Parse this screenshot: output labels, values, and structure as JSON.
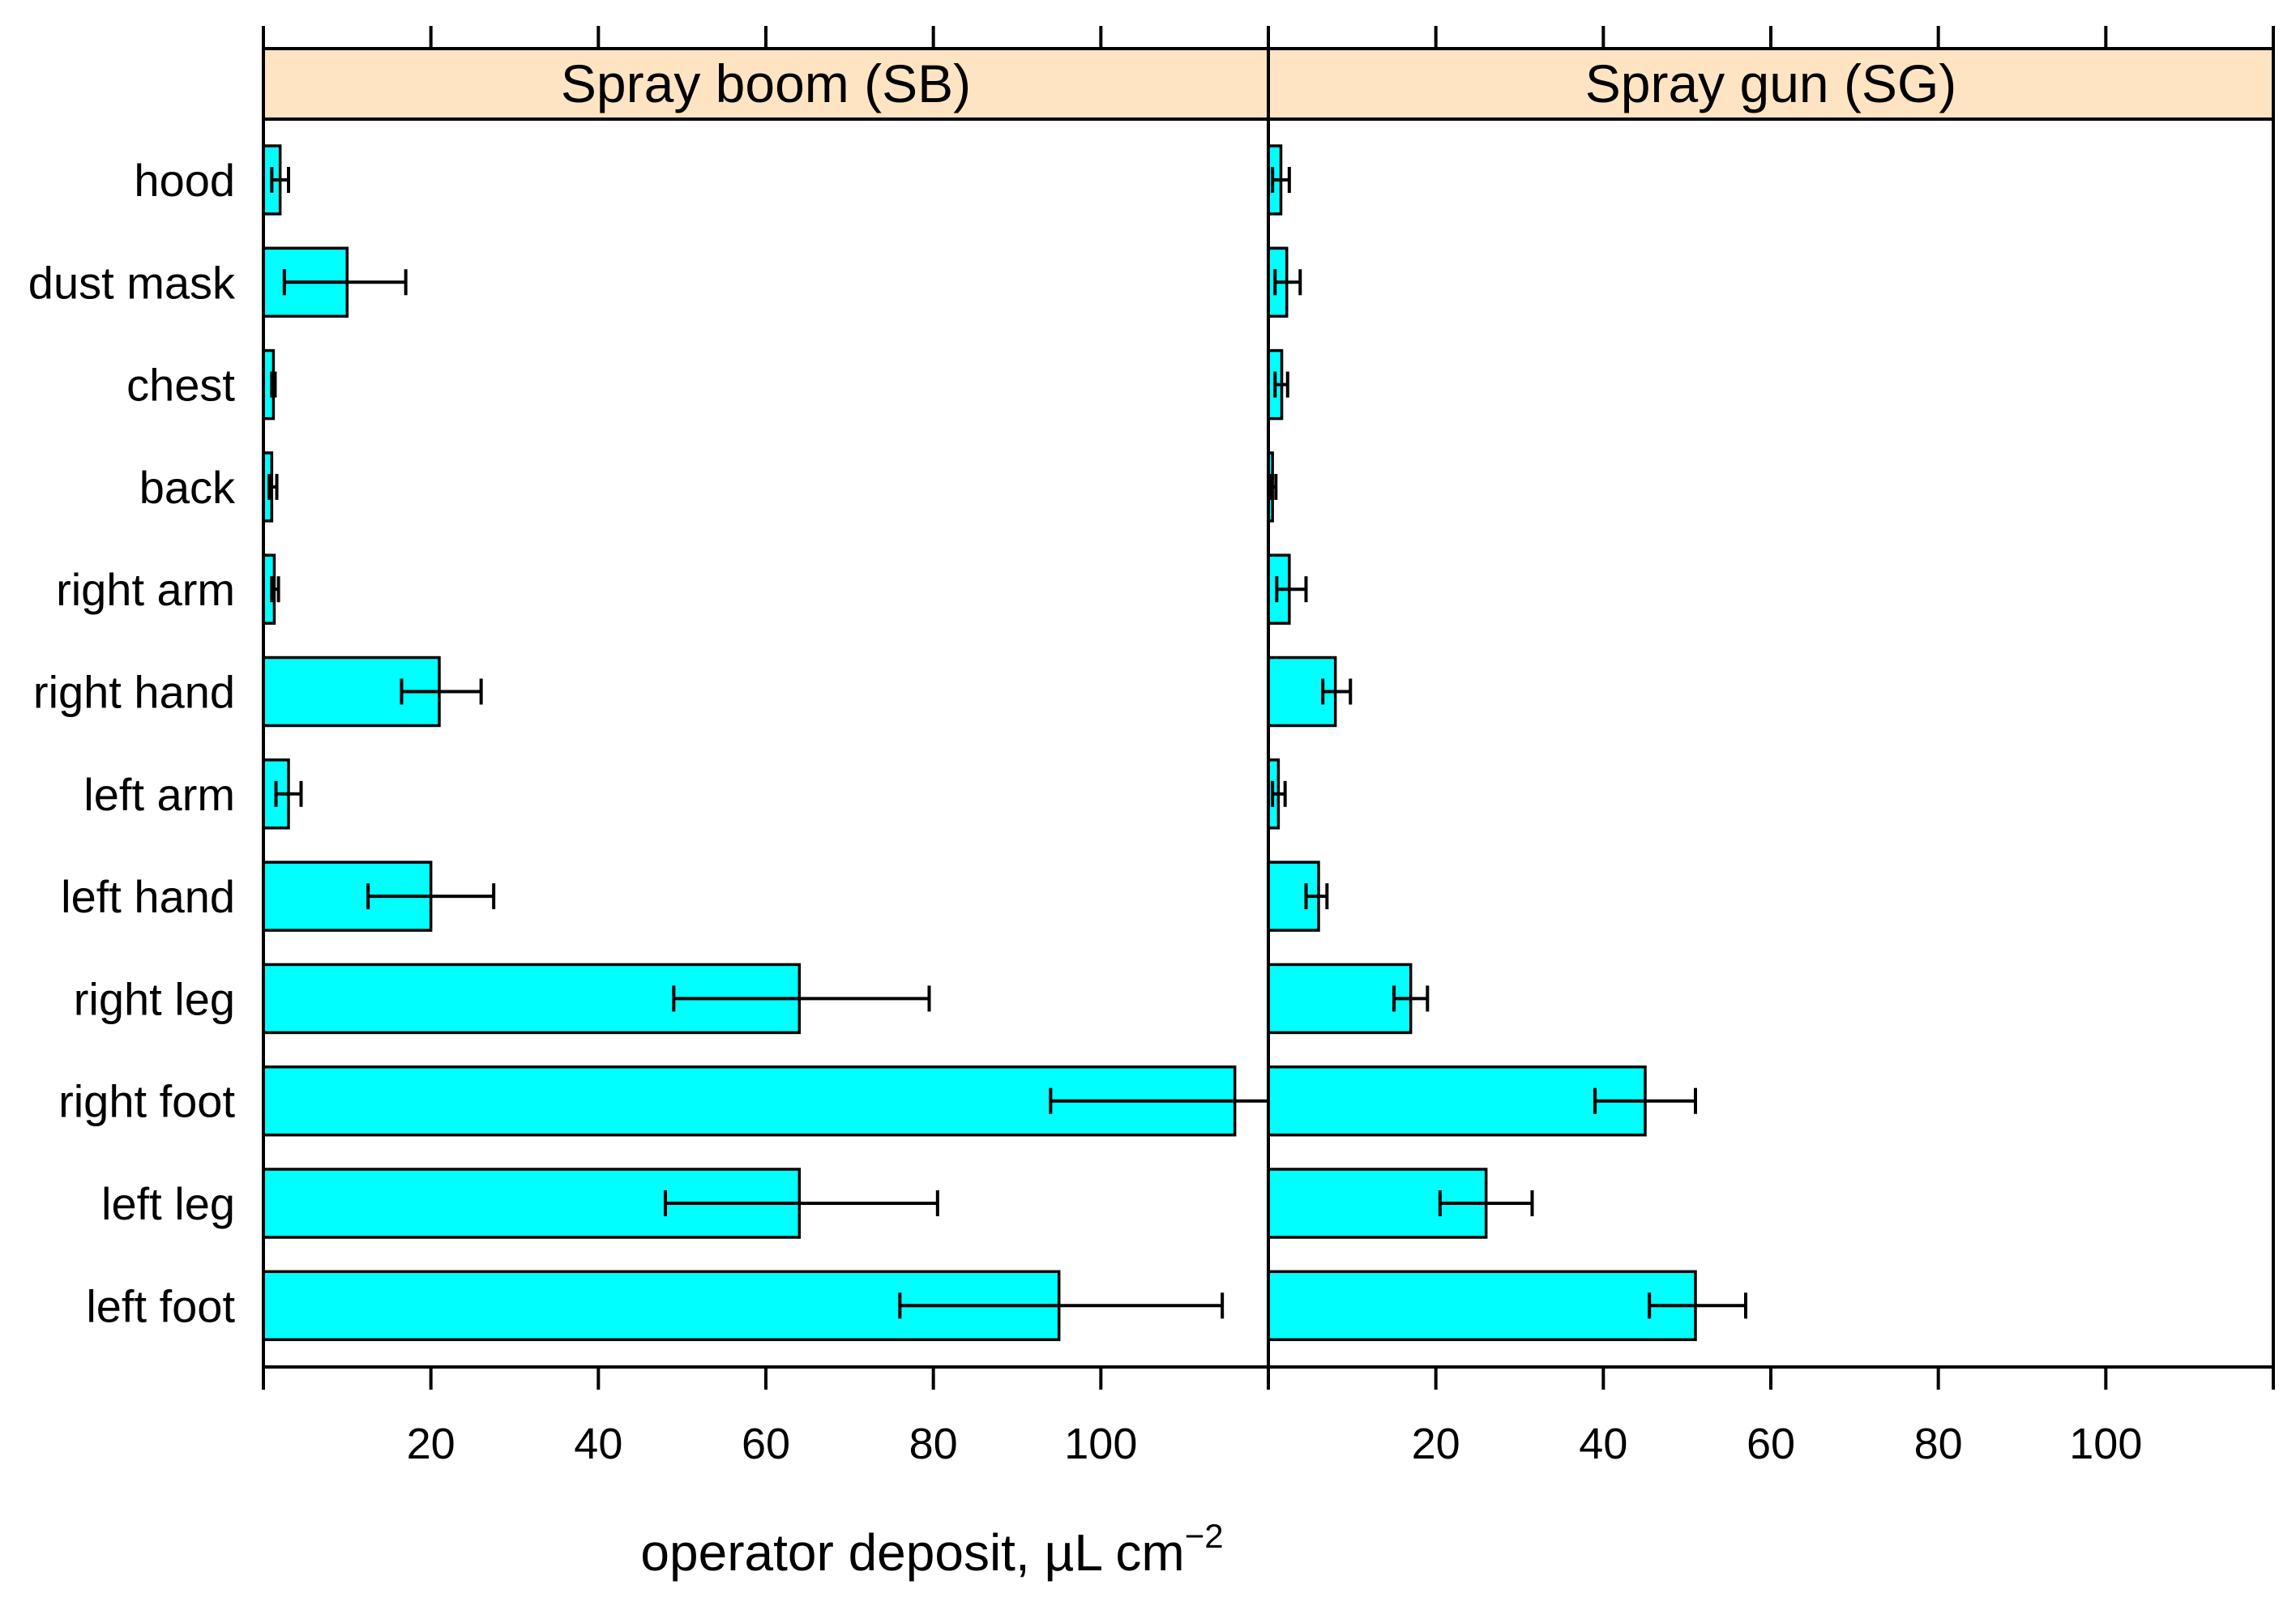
{
  "chart_data": {
    "type": "bar",
    "orientation": "horizontal",
    "bar_color": "#00FFFF",
    "strip_color": "#FFE4C4",
    "categories": [
      "hood",
      "dust mask",
      "chest",
      "back",
      "right arm",
      "right hand",
      "left arm",
      "left hand",
      "right leg",
      "right foot",
      "left leg",
      "left foot"
    ],
    "xlim": [
      0,
      120
    ],
    "xticks": [
      20,
      40,
      60,
      80,
      100
    ],
    "x_tick_labels": [
      "20",
      "40",
      "60",
      "80",
      "100"
    ],
    "xlabel": {
      "main": "operator deposit,  µL cm",
      "superscript": "−2"
    },
    "panels": [
      {
        "name": "Spray boom (SB)",
        "values": [
          2,
          10,
          1.2,
          1,
          1.3,
          21,
          3,
          20,
          64,
          116,
          64,
          95
        ],
        "err_low": [
          1,
          2.5,
          1,
          0.7,
          1,
          16.5,
          1.5,
          12.5,
          49,
          94,
          48,
          76
        ],
        "err_high": [
          3,
          17,
          1.4,
          1.6,
          1.8,
          26,
          4.5,
          27.5,
          79.5,
          120,
          80.5,
          114.5
        ]
      },
      {
        "name": "Spray gun (SG)",
        "values": [
          1.5,
          2.2,
          1.6,
          0.5,
          2.5,
          8,
          1.2,
          6,
          17,
          45,
          26,
          51
        ],
        "err_low": [
          0.5,
          0.8,
          0.8,
          0.2,
          1,
          6.5,
          0.5,
          4.5,
          15,
          39,
          20.5,
          45.5
        ],
        "err_high": [
          2.5,
          3.8,
          2.3,
          0.9,
          4.5,
          9.8,
          2,
          7,
          19,
          51,
          31.5,
          57
        ]
      }
    ]
  }
}
